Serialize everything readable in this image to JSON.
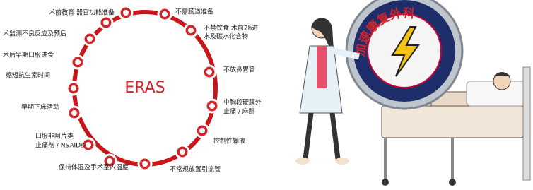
{
  "diagram": {
    "center_label": "ERAS",
    "nodes": [
      {
        "lines": [
          "术前教育 器官功能准备"
        ]
      },
      {
        "lines": [
          "不需肠道准备"
        ]
      },
      {
        "lines": [
          "不禁饮食 术前2h进",
          "水及碳水化合物"
        ]
      },
      {
        "lines": [
          "不放鼻胃管"
        ]
      },
      {
        "lines": [
          "中胸段硬膜外",
          "止痛 / 麻醉"
        ]
      },
      {
        "lines": [
          "控制性输液"
        ]
      },
      {
        "lines": [
          "不常规放置引流管"
        ]
      },
      {
        "lines": [
          "保持体温及手术室内温度"
        ]
      },
      {
        "lines": [
          "口服非阿片类",
          "止痛剂 / NSAIDs"
        ]
      },
      {
        "lines": [
          "早期下床活动"
        ]
      },
      {
        "lines": [
          "缩短抗生素时间"
        ]
      },
      {
        "lines": [
          "术后早期口服进食"
        ]
      },
      {
        "lines": [
          "术监测不良反应及预后"
        ]
      }
    ]
  },
  "illustration": {
    "dial_text": "加速康复外科"
  }
}
